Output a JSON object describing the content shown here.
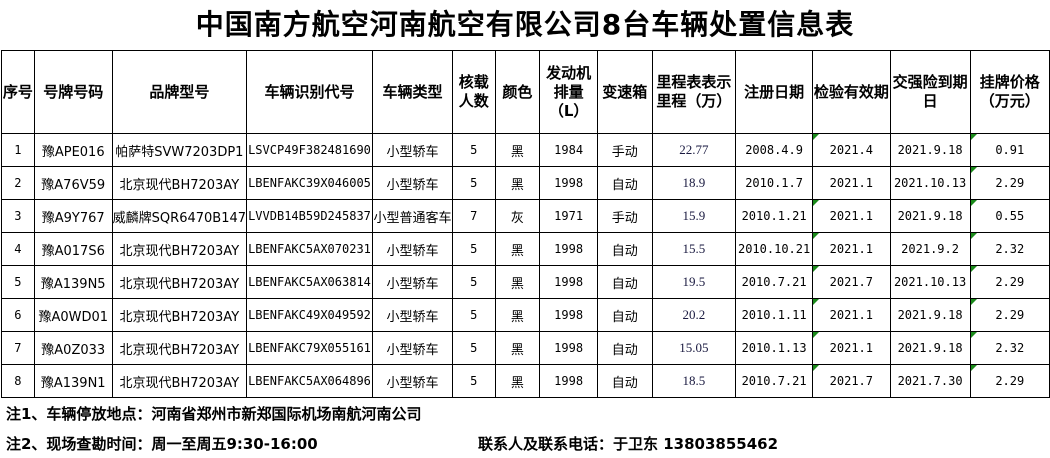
{
  "title": "中国南方航空河南航空有限公司8台车辆处置信息表",
  "headers": [
    "序号",
    "号牌号码",
    "品牌型号",
    "车辆识别代号",
    "车辆类型",
    "核载人数",
    "颜色",
    "发动机排量（L）",
    "变速箱",
    "里程表表示里程（万）",
    "注册日期",
    "检验有效期",
    "交强险到期日",
    "挂牌价格（万元）"
  ],
  "rows": [
    [
      "1",
      "豫APE016",
      "帕萨特SVW7203DP1",
      "LSVCP49F382481690",
      "小型轿车",
      "5",
      "黑",
      "1984",
      "手动",
      "22.77",
      "2008.4.9",
      "2021.4",
      "2021.9.18",
      "0.91"
    ],
    [
      "2",
      "豫A76V59",
      "北京现代BH7203AY",
      "LBENFAKC39X046005",
      "小型轿车",
      "5",
      "黑",
      "1998",
      "自动",
      "18.9",
      "2010.1.7",
      "2021.1",
      "2021.10.13",
      "2.29"
    ],
    [
      "3",
      "豫A9Y767",
      "威麟牌SQR6470B147",
      "LVVDB14B59D245837",
      "小型普通客车",
      "7",
      "灰",
      "1971",
      "手动",
      "15.9",
      "2010.1.21",
      "2021.1",
      "2021.9.18",
      "0.55"
    ],
    [
      "4",
      "豫A017S6",
      "北京现代BH7203AY",
      "LBENFAKC5AX070231",
      "小型轿车",
      "5",
      "黑",
      "1998",
      "自动",
      "15.5",
      "2010.10.21",
      "2021.1",
      "2021.9.2",
      "2.32"
    ],
    [
      "5",
      "豫A139N5",
      "北京现代BH7203AY",
      "LBENFAKC5AX063814",
      "小型轿车",
      "5",
      "黑",
      "1998",
      "自动",
      "19.5",
      "2010.7.21",
      "2021.7",
      "2021.10.13",
      "2.29"
    ],
    [
      "6",
      "豫A0WD01",
      "北京现代BH7203AY",
      "LBENFAKC49X049592",
      "小型轿车",
      "5",
      "黑",
      "1998",
      "自动",
      "20.2",
      "2010.1.11",
      "2021.1",
      "2021.9.18",
      "2.29"
    ],
    [
      "7",
      "豫A0Z033",
      "北京现代BH7203AY",
      "LBENFAKC79X055161",
      "小型轿车",
      "5",
      "黑",
      "1998",
      "自动",
      "15.05",
      "2010.1.13",
      "2021.1",
      "2021.9.18",
      "2.32"
    ],
    [
      "8",
      "豫A139N1",
      "北京现代BH7203AY",
      "LBENFAKC5AX064896",
      "小型轿车",
      "5",
      "黑",
      "1998",
      "自动",
      "18.5",
      "2010.7.21",
      "2021.7",
      "2021.7.30",
      "2.29"
    ]
  ],
  "notes": {
    "note1": "注1、车辆停放地点：河南省郑州市新郑国际机场南航河南公司",
    "note2": "注2、现场查勘时间：周一至周五9:30-16:00",
    "contact": "联系人及联系电话：于卫东  13803855462"
  },
  "colors": {
    "comment_marker": "#1a8a1a"
  }
}
